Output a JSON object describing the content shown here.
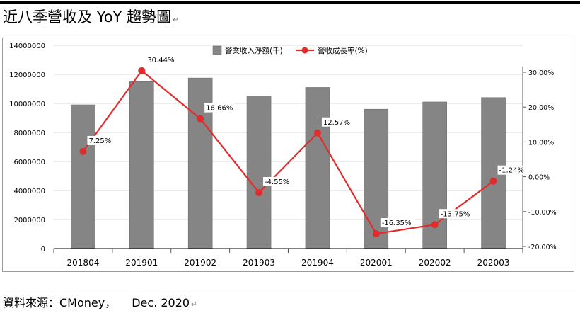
{
  "page": {
    "title": "近八季營收及 YoY 趨勢圖",
    "para_mark": "↵",
    "source_label": "資料來源：CMoney，",
    "source_date": "Dec. 2020"
  },
  "colors": {
    "bar": "#858585",
    "bar_edge": "#6f6f6f",
    "line": "#e32b2b",
    "grid": "#d9d9d9",
    "axis": "#000000",
    "frame": "#9a9a9a"
  },
  "chart_data": {
    "type": "bar+line",
    "categories": [
      "201804",
      "201901",
      "201902",
      "201903",
      "201904",
      "202001",
      "202002",
      "202003"
    ],
    "series": [
      {
        "name": "營業收入淨額(千)",
        "type": "bar",
        "axis": "left",
        "values": [
          9900000,
          11500000,
          11750000,
          10500000,
          11100000,
          9600000,
          10100000,
          10400000
        ]
      },
      {
        "name": "營收成長率(%)",
        "type": "line",
        "axis": "right",
        "values": [
          7.25,
          30.44,
          16.66,
          -4.55,
          12.57,
          -16.35,
          -13.75,
          -1.24
        ],
        "labels": [
          "7.25%",
          "30.44%",
          "16.66%",
          "-4.55%",
          "12.57%",
          "-16.35%",
          "-13.75%",
          "-1.24%"
        ]
      }
    ],
    "y_left": {
      "min": 0,
      "max": 14000000,
      "ticks": [
        0,
        2000000,
        4000000,
        6000000,
        8000000,
        10000000,
        12000000,
        14000000
      ],
      "tick_labels": [
        "0",
        "2000000",
        "4000000",
        "6000000",
        "8000000",
        "10000000",
        "12000000",
        "14000000"
      ]
    },
    "y_right": {
      "min": -20,
      "max": 30,
      "ticks": [
        -20,
        -10,
        0,
        10,
        20,
        30
      ],
      "tick_labels": [
        "-20.00%",
        "-10.00%",
        "0.00%",
        "10.00%",
        "20.00%",
        "30.00%"
      ]
    },
    "grid": true,
    "legend_position": "top"
  }
}
